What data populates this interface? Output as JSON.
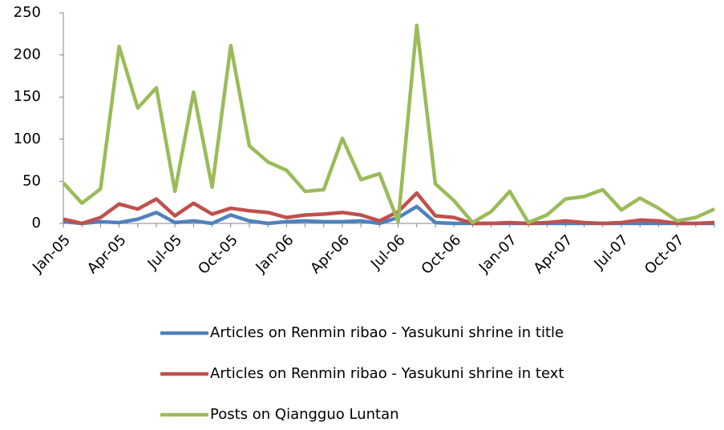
{
  "chart_data": {
    "type": "line",
    "categories": [
      "Jan-05",
      null,
      null,
      "Apr-05",
      null,
      null,
      "Jul-05",
      null,
      null,
      "Oct-05",
      null,
      null,
      "Jan-06",
      null,
      null,
      "Apr-06",
      null,
      null,
      "Jul-06",
      null,
      null,
      "Oct-06",
      null,
      null,
      "Jan-07",
      null,
      null,
      "Apr-07",
      null,
      null,
      "Jul-07",
      null,
      null,
      "Oct-07",
      null,
      null
    ],
    "series": [
      {
        "name": "Articles on Renmin ribao - Yasukuni shrine in title",
        "color": "#4f81bd",
        "values": [
          2,
          0,
          2,
          1,
          5,
          13,
          1,
          3,
          0,
          10,
          3,
          0,
          2,
          3,
          2,
          2,
          3,
          0,
          7,
          20,
          1,
          0,
          0,
          0,
          0,
          0,
          0,
          0,
          0,
          0,
          0,
          0,
          0,
          0,
          0,
          0
        ]
      },
      {
        "name": "Articles on Renmin ribao - Yasukuni shrine in text",
        "color": "#c0504d",
        "values": [
          5,
          0,
          7,
          23,
          17,
          29,
          9,
          24,
          11,
          18,
          15,
          13,
          7,
          10,
          11,
          13,
          10,
          3,
          14,
          36,
          9,
          7,
          0,
          0,
          1,
          0,
          1,
          3,
          1,
          0,
          1,
          4,
          3,
          0,
          0,
          1
        ]
      },
      {
        "name": "Posts on Qiangguo Luntan",
        "color": "#9bbb59",
        "values": [
          48,
          24,
          41,
          210,
          137,
          161,
          38,
          156,
          43,
          211,
          92,
          73,
          63,
          38,
          40,
          101,
          52,
          59,
          2,
          235,
          47,
          27,
          1,
          14,
          38,
          1,
          10,
          29,
          32,
          40,
          16,
          30,
          18,
          3,
          7,
          17
        ]
      }
    ],
    "ylim": [
      0,
      250
    ],
    "yticks": [
      0,
      50,
      100,
      150,
      200,
      250
    ],
    "grid": false,
    "legend": "bottom"
  }
}
